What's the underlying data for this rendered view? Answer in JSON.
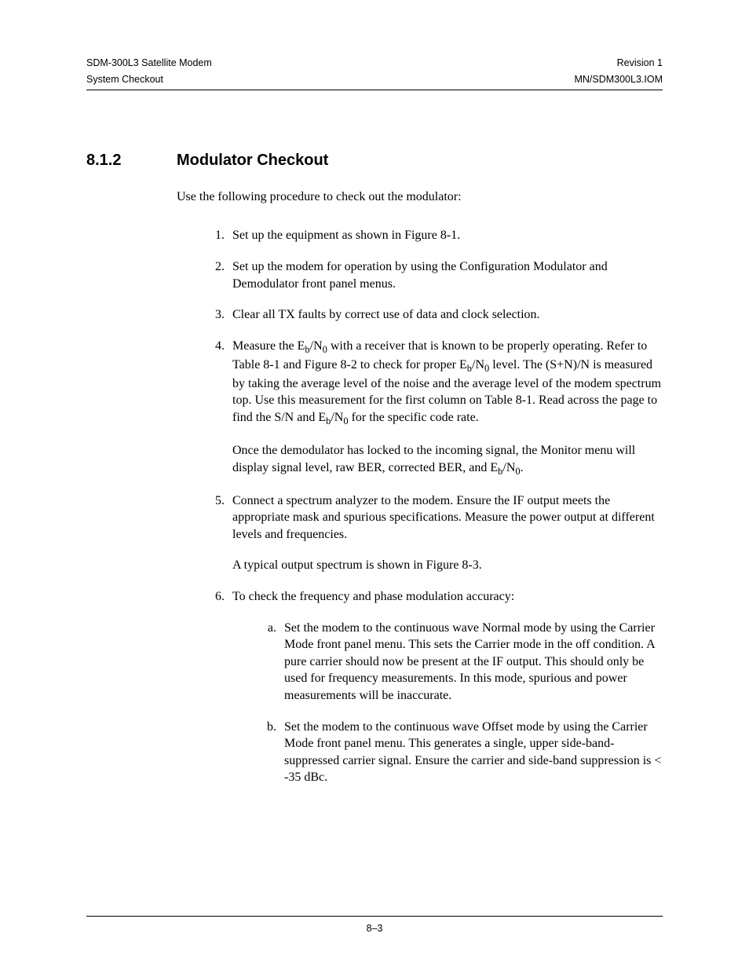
{
  "header": {
    "left1": "SDM-300L3 Satellite Modem",
    "left2": "System Checkout",
    "right1": "Revision 1",
    "right2": "MN/SDM300L3.IOM"
  },
  "section": {
    "number": "8.1.2",
    "title": "Modulator Checkout"
  },
  "intro": "Use the following procedure to check out the modulator:",
  "steps": {
    "s1": "Set up the equipment as shown in Figure 8-1.",
    "s2": "Set up the modem for operation by using the Configuration Modulator and Demodulator front panel menus.",
    "s3": "Clear all TX faults by correct use of data and clock selection.",
    "s4a": "Measure the E",
    "s4b": "/N",
    "s4c": " with a receiver that is known to be properly operating. Refer to Table 8-1 and Figure 8-2 to check for proper E",
    "s4d": "/N",
    "s4e": " level. The (S+N)/N is measured by taking the average level of the noise and the average level of the modem spectrum top. Use this measurement for the first column on Table 8-1. Read across the page to find the S/N and E",
    "s4f": "/N",
    "s4g": " for the specific code rate.",
    "s4p2a": "Once the demodulator has locked to the incoming signal, the Monitor menu will display signal level, raw BER, corrected BER, and E",
    "s4p2b": "/N",
    "s4p2c": ".",
    "s5p1": "Connect a spectrum analyzer to the modem. Ensure the IF output meets the appropriate mask and spurious specifications. Measure the power output at different levels and frequencies.",
    "s5p2": "A typical output spectrum is shown in Figure 8-3.",
    "s6": "To check the frequency and phase modulation accuracy:",
    "s6a": "Set the modem to the continuous wave Normal mode by using the Carrier Mode front panel menu. This sets the Carrier mode in the off condition. A pure carrier should now be present at the IF output. This should only be used for frequency measurements. In this mode, spurious and power measurements will be inaccurate.",
    "s6b": "Set the modem to the continuous wave Offset mode by using the Carrier Mode front panel menu. This generates a single, upper side-band-suppressed carrier signal. Ensure the carrier and side-band suppression is < -35 dBc."
  },
  "sub_b": "b",
  "sub_0": "0",
  "footer": {
    "page": "8–3"
  }
}
